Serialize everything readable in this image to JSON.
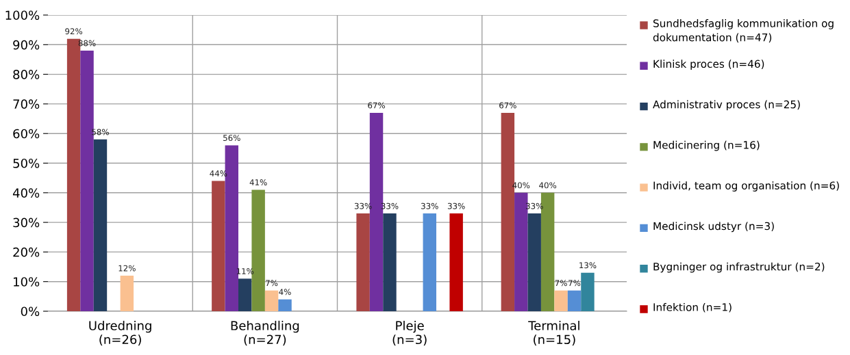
{
  "chart_data": {
    "type": "bar",
    "categories": [
      "Udredning\n(n=26)",
      "Behandling\n(n=27)",
      "Pleje\n(n=3)",
      "Terminal\n(n=15)"
    ],
    "series": [
      {
        "name": "Sundhedsfaglig kommunikation og dokumentation (n=47)",
        "color": "#a84543",
        "values": [
          92,
          44,
          33,
          67
        ],
        "value_labels": [
          "92%",
          "44%",
          "33%",
          "67%"
        ]
      },
      {
        "name": "Klinisk proces (n=46)",
        "color": "#7030a0",
        "values": [
          88,
          56,
          67,
          40
        ],
        "value_labels": [
          "88%",
          "56%",
          "67%",
          "40%"
        ]
      },
      {
        "name": "Administrativ proces (n=25)",
        "color": "#243f60",
        "values": [
          58,
          11,
          33,
          33
        ],
        "value_labels": [
          "58%",
          "11%",
          "33%",
          "33%"
        ]
      },
      {
        "name": "Medicinering (n=16)",
        "color": "#77933c",
        "values": [
          null,
          41,
          null,
          40
        ],
        "value_labels": [
          null,
          "41%",
          null,
          "40%"
        ]
      },
      {
        "name": "Individ, team og organisation (n=6)",
        "color": "#fac090",
        "values": [
          12,
          7,
          null,
          7
        ],
        "value_labels": [
          "12%",
          "7%",
          null,
          "7%"
        ]
      },
      {
        "name": "Medicinsk udstyr (n=3)",
        "color": "#558ed5",
        "values": [
          null,
          4,
          33,
          7
        ],
        "value_labels": [
          null,
          "4%",
          "33%",
          "7%"
        ]
      },
      {
        "name": "Bygninger og infrastruktur (n=2)",
        "color": "#31859c",
        "values": [
          null,
          null,
          null,
          13
        ],
        "value_labels": [
          null,
          null,
          null,
          "13%"
        ]
      },
      {
        "name": "Infektion (n=1)",
        "color": "#c00000",
        "values": [
          null,
          null,
          33,
          null
        ],
        "value_labels": [
          null,
          null,
          "33%",
          null
        ]
      }
    ],
    "ylim": [
      0,
      100
    ],
    "yticks": [
      {
        "value": 0,
        "label": "0%"
      },
      {
        "value": 10,
        "label": "10%"
      },
      {
        "value": 20,
        "label": "20%"
      },
      {
        "value": 30,
        "label": "30%"
      },
      {
        "value": 40,
        "label": "40%"
      },
      {
        "value": 50,
        "label": "50%"
      },
      {
        "value": 60,
        "label": "60%"
      },
      {
        "value": 70,
        "label": "70%"
      },
      {
        "value": 80,
        "label": "80%"
      },
      {
        "value": 90,
        "label": "90%"
      },
      {
        "value": 100,
        "label": "100%"
      }
    ],
    "grid": true,
    "legend": "right"
  }
}
